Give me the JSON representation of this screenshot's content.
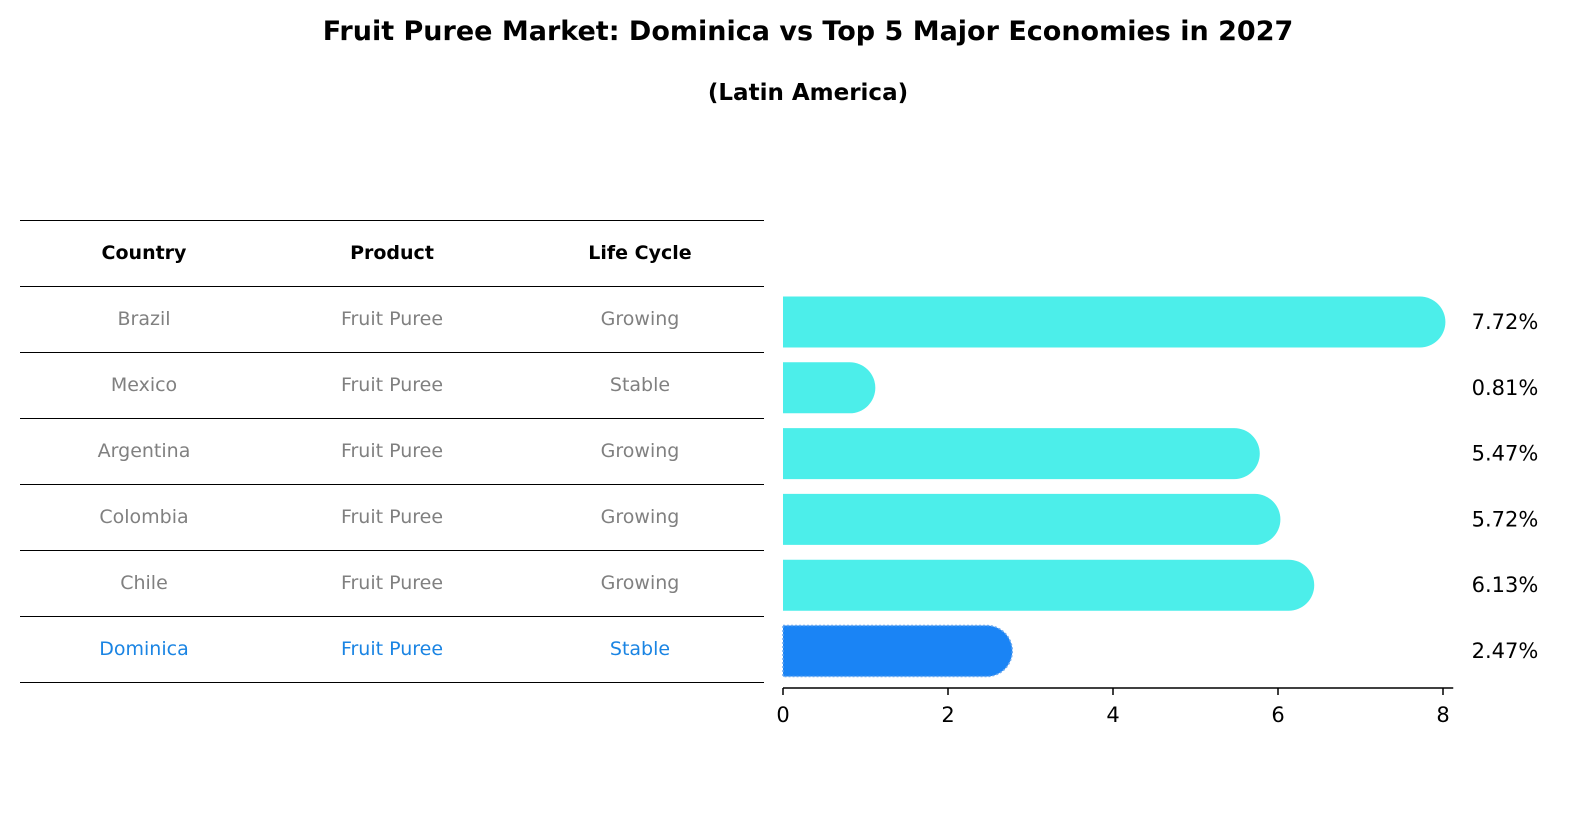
{
  "chart_data": {
    "type": "bar",
    "orientation": "horizontal",
    "title": "Fruit Puree Market: Dominica vs Top 5 Major Economies in 2027",
    "subtitle": "(Latin America)",
    "table": {
      "headers": [
        "Country",
        "Product",
        "Life Cycle"
      ],
      "rows": [
        {
          "country": "Brazil",
          "product": "Fruit Puree",
          "life_cycle": "Growing",
          "highlight": false
        },
        {
          "country": "Mexico",
          "product": "Fruit Puree",
          "life_cycle": "Stable",
          "highlight": false
        },
        {
          "country": "Argentina",
          "product": "Fruit Puree",
          "life_cycle": "Growing",
          "highlight": false
        },
        {
          "country": "Colombia",
          "product": "Fruit Puree",
          "life_cycle": "Growing",
          "highlight": false
        },
        {
          "country": "Chile",
          "product": "Fruit Puree",
          "life_cycle": "Growing",
          "highlight": false
        },
        {
          "country": "Dominica",
          "product": "Fruit Puree",
          "life_cycle": "Stable",
          "highlight": true
        }
      ]
    },
    "categories": [
      "Brazil",
      "Mexico",
      "Argentina",
      "Colombia",
      "Chile",
      "Dominica"
    ],
    "values": [
      7.72,
      0.81,
      5.47,
      5.72,
      6.13,
      2.47
    ],
    "value_labels": [
      "7.72%",
      "0.81%",
      "5.47%",
      "5.72%",
      "6.13%",
      "2.47%"
    ],
    "xlim": [
      0,
      8.1
    ],
    "xticks": [
      0,
      2,
      4,
      6,
      8
    ],
    "xlabel": "",
    "ylabel": "",
    "grid": false,
    "colors": {
      "bar": "#4ceeea",
      "highlight_bar": "#1a84f5",
      "table_text": "#808080",
      "highlight_text": "#1a84e3",
      "axis": "#000000"
    }
  }
}
